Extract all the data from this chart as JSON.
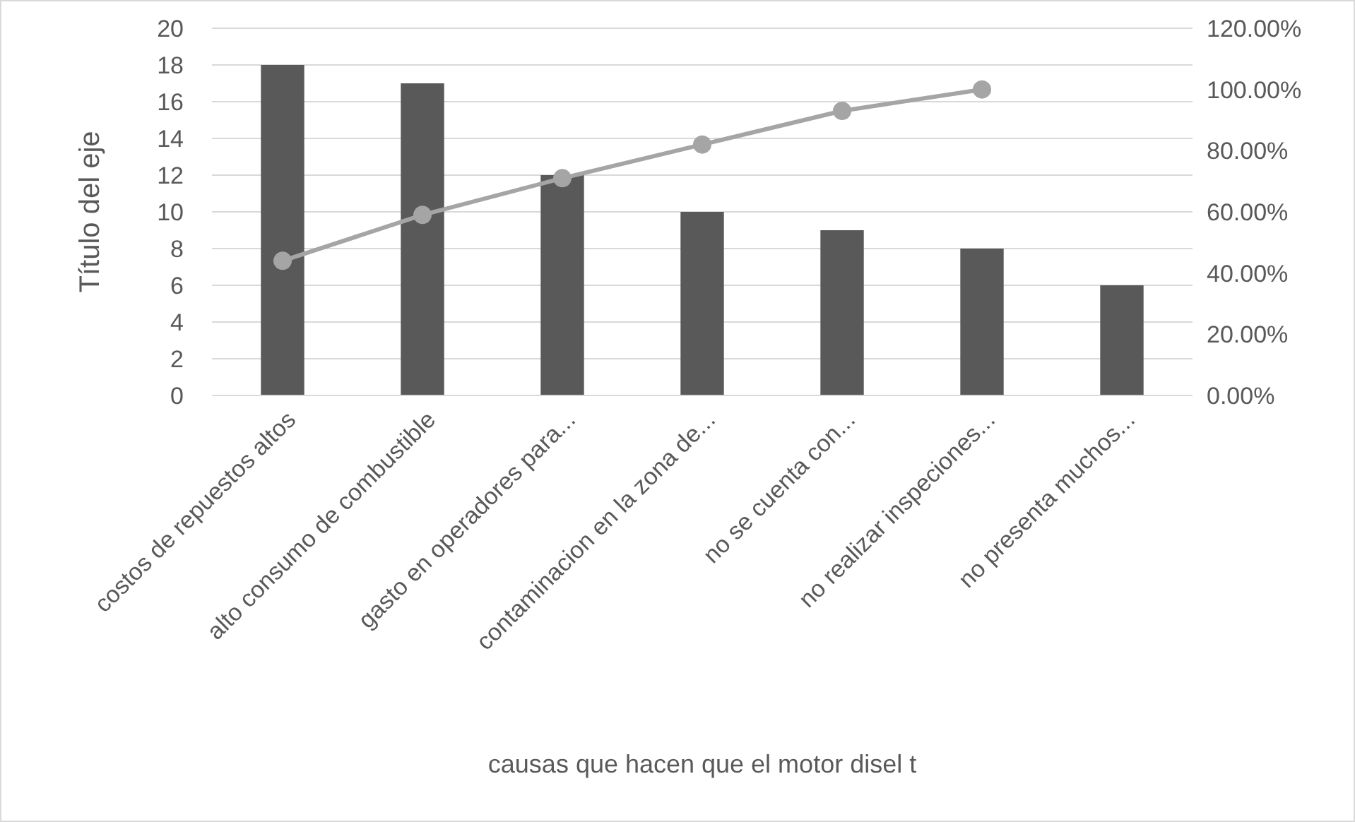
{
  "chart_data": {
    "type": "bar",
    "xlabel": "causas que hacen que el motor disel t",
    "ylabel": "Título del eje",
    "categories": [
      "costos de repuestos altos",
      "alto consumo de combustible",
      "gasto en operadores para...",
      "contaminacion en la zona de...",
      "no se cuenta con...",
      "no realizar inspeciones...",
      "no presenta muchos..."
    ],
    "series": [
      {
        "color": "#595959",
        "values": [
          18,
          17,
          12,
          10,
          9,
          8,
          6
        ]
      },
      {
        "type": "line",
        "axis": "y2",
        "color": "#a5a5a5",
        "values": [
          44,
          59,
          71,
          82,
          93,
          100,
          null
        ]
      }
    ],
    "ylim": [
      0,
      20
    ],
    "yticks": [
      0,
      2,
      4,
      6,
      8,
      10,
      12,
      14,
      16,
      18,
      20
    ],
    "y2lim": [
      0,
      120
    ],
    "y2ticks": [
      {
        "value": 0,
        "label": "0.00%"
      },
      {
        "value": 20,
        "label": "20.00%"
      },
      {
        "value": 40,
        "label": "40.00%"
      },
      {
        "value": 60,
        "label": "60.00%"
      },
      {
        "value": 80,
        "label": "80.00%"
      },
      {
        "value": 100,
        "label": "100.00%"
      },
      {
        "value": 120,
        "label": "120.00%"
      }
    ],
    "grid": "y",
    "marker": "circle"
  }
}
